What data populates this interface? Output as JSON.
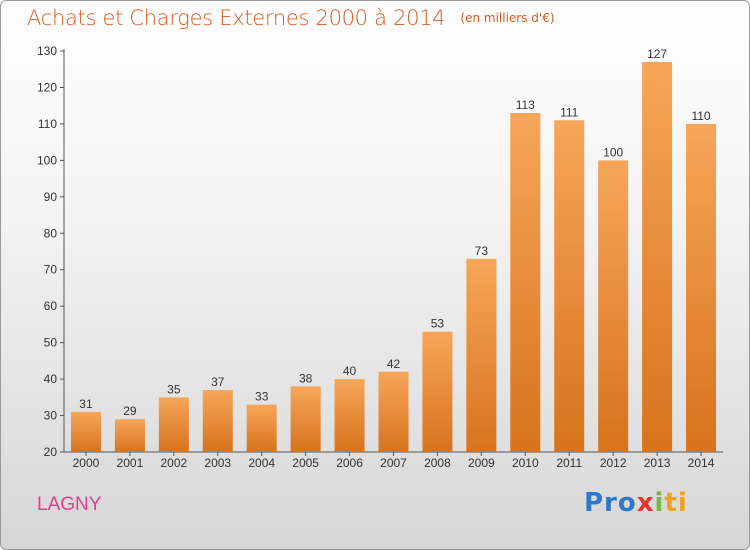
{
  "header": {
    "title": "Achats et Charges Externes 2000 à 2014",
    "unit": "(en milliers d'€)"
  },
  "location": "LAGNY",
  "logo": {
    "part1": "Pro",
    "part2": "x",
    "part3": "i",
    "part4": "ti"
  },
  "colors": {
    "bar_light": "#f6a65a",
    "bar_dark": "#d7731c",
    "title": "#d85a1e",
    "city": "#e0408a"
  },
  "chart_data": {
    "type": "bar",
    "categories": [
      "2000",
      "2001",
      "2002",
      "2003",
      "2004",
      "2005",
      "2006",
      "2007",
      "2008",
      "2009",
      "2010",
      "2011",
      "2012",
      "2013",
      "2014"
    ],
    "values": [
      31,
      29,
      35,
      37,
      33,
      38,
      40,
      42,
      53,
      73,
      113,
      111,
      100,
      127,
      110
    ],
    "ylim": [
      20,
      130
    ],
    "yticks": [
      20,
      30,
      40,
      50,
      60,
      70,
      80,
      90,
      100,
      110,
      120,
      130
    ],
    "grid": false,
    "legend": "none"
  }
}
